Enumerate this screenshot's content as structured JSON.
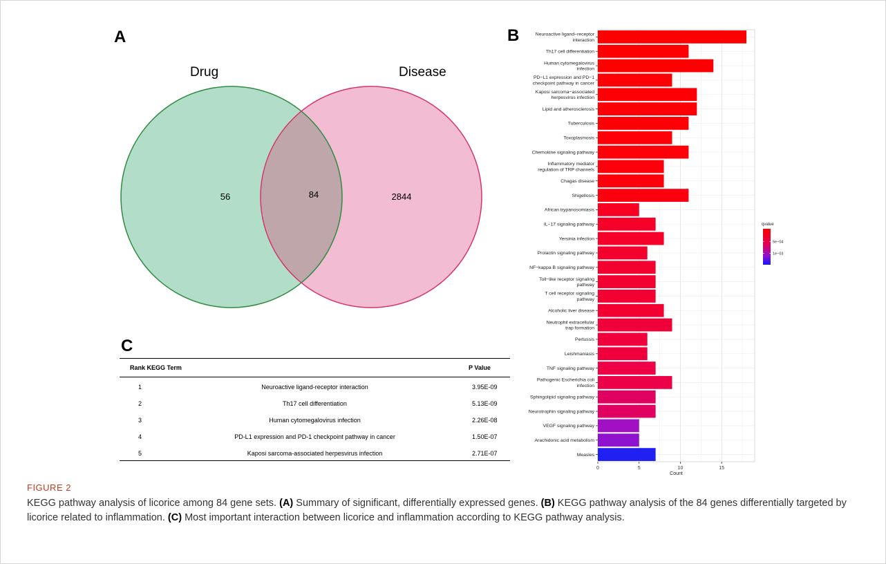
{
  "panels": {
    "a": "A",
    "b": "B",
    "c": "C"
  },
  "venn": {
    "left_label": "Drug",
    "right_label": "Disease",
    "left_only": "56",
    "overlap": "84",
    "right_only": "2844",
    "colors": {
      "left_fill": "#b2dec9",
      "left_stroke": "#2e8b3e",
      "right_fill": "#f2bdd3",
      "right_stroke": "#d6336c",
      "overlap_fill": "#bea6aa"
    }
  },
  "chart_data": {
    "type": "bar",
    "orientation": "horizontal",
    "categories": [
      "Neuroactive ligand−receptor interaction",
      "Th17 cell differentiation",
      "Human cytomegalovirus infection",
      "PD−L1 expression and PD−1 checkpoint pathway in cancer",
      "Kaposi sarcoma−associated herpesvirus infection",
      "Lipid and atherosclerosis",
      "Tuberculosis",
      "Toxoplasmosis",
      "Chemokine signaling pathway",
      "Inflammatory mediator regulation of TRP channels",
      "Chagas disease",
      "Shigellosis",
      "African trypanosomiasis",
      "IL−17 signaling pathway",
      "Yersinia infection",
      "Prolactin signaling pathway",
      "NF−kappa B signaling pathway",
      "Toll−like receptor signaling pathway",
      "T cell receptor signaling pathway",
      "Alcoholic liver disease",
      "Neutrophil extracellular trap formation",
      "Pertussis",
      "Leishmaniasis",
      "TNF signaling pathway",
      "Pathogenic Escherichia coli infection",
      "Sphingolipid signaling pathway",
      "Neurotrophin signaling pathway",
      "VEGF signaling pathway",
      "Arachidonic acid metabolism",
      "Measles"
    ],
    "label_lines": [
      [
        "Neuroactive ligand−receptor",
        "interaction"
      ],
      [
        "Th17 cell differentiation"
      ],
      [
        "Human cytomegalovirus",
        "infection"
      ],
      [
        "PD−L1 expression and PD−1",
        "checkpoint pathway in cancer"
      ],
      [
        "Kaposi sarcoma−associated",
        "herpesvirus infection"
      ],
      [
        "Lipid and atherosclerosis"
      ],
      [
        "Tuberculosis"
      ],
      [
        "Toxoplasmosis"
      ],
      [
        "Chemokine signaling pathway"
      ],
      [
        "Inflammatory mediator",
        "regulation of TRP channels"
      ],
      [
        "Chagas disease"
      ],
      [
        "Shigellosis"
      ],
      [
        "African trypanosomiasis"
      ],
      [
        "IL−17 signaling pathway"
      ],
      [
        "Yersinia infection"
      ],
      [
        "Prolactin signaling pathway"
      ],
      [
        "NF−kappa B signaling pathway"
      ],
      [
        "Toll−like receptor signaling",
        "pathway"
      ],
      [
        "T cell receptor signaling",
        "pathway"
      ],
      [
        "Alcoholic liver disease"
      ],
      [
        "Neutrophil extracellular",
        "trap formation"
      ],
      [
        "Pertussis"
      ],
      [
        "Leishmaniasis"
      ],
      [
        "TNF signaling pathway"
      ],
      [
        "Pathogenic Escherichia coli",
        "infection"
      ],
      [
        "Sphingolipid signaling pathway"
      ],
      [
        "Neurotrophin signaling pathway"
      ],
      [
        "VEGF signaling pathway"
      ],
      [
        "Arachidonic acid metabolism"
      ],
      [
        "Measles"
      ]
    ],
    "values": [
      18,
      11,
      14,
      9,
      12,
      12,
      11,
      9,
      11,
      8,
      8,
      11,
      5,
      7,
      8,
      6,
      7,
      7,
      7,
      8,
      9,
      6,
      6,
      7,
      9,
      7,
      7,
      5,
      5,
      7
    ],
    "bar_colors": [
      "#fe0000",
      "#fe0000",
      "#fe0000",
      "#fd0005",
      "#fd0005",
      "#fd0005",
      "#fd0005",
      "#fd0008",
      "#fd0008",
      "#fc000c",
      "#fc000c",
      "#fc0010",
      "#f70022",
      "#f50028",
      "#f50028",
      "#f3002c",
      "#f20030",
      "#f20030",
      "#f20032",
      "#f20032",
      "#f00038",
      "#ef003c",
      "#ef003c",
      "#ed0045",
      "#ec0048",
      "#e00060",
      "#e00060",
      "#a210c4",
      "#8f12cf",
      "#2020f2"
    ],
    "xlabel": "Count",
    "x_ticks": [
      0,
      5,
      10,
      15
    ],
    "xlim": [
      0,
      19
    ],
    "grid": true,
    "legend": {
      "title": "qvalue",
      "ticks": [
        "5e−04",
        "1e−03"
      ],
      "placement": "right"
    }
  },
  "table": {
    "headers": {
      "rank_term": "Rank KEGG Term",
      "pvalue": "P Value"
    },
    "rows": [
      {
        "rank": "1",
        "term": "Neuroactive ligand-receptor interaction",
        "p": "3.95E-09"
      },
      {
        "rank": "2",
        "term": "Th17 cell differentiation",
        "p": "5.13E-09"
      },
      {
        "rank": "3",
        "term": "Human cytomegalovirus infection",
        "p": "2.26E-08"
      },
      {
        "rank": "4",
        "term": "PD-L1 expression and PD-1 checkpoint pathway in cancer",
        "p": "1.50E-07"
      },
      {
        "rank": "5",
        "term": "Kaposi sarcoma-associated herpesvirus infection",
        "p": "2.71E-07"
      }
    ]
  },
  "caption": {
    "figure_label": "FIGURE 2",
    "t1": "KEGG pathway analysis of licorice among 84 gene sets. ",
    "a": "(A)",
    "t2": " Summary of significant, differentially expressed genes. ",
    "b": "(B)",
    "t3": " KEGG pathway analysis of the 84 genes differentially targeted by licorice related to inflammation. ",
    "c": "(C)",
    "t4": " Most important interaction between licorice and inflammation according to KEGG pathway analysis."
  }
}
